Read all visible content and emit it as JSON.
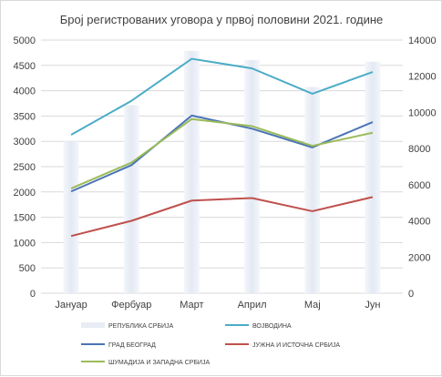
{
  "chart_data": {
    "type": "combo-bar-line",
    "title": "Број регистрованих уговора у првој половини 2021. године",
    "categories": [
      "Јануар",
      "Фербуар",
      "Март",
      "Април",
      "Мај",
      "Јун"
    ],
    "left_axis": {
      "min": 0,
      "max": 5000,
      "step": 500
    },
    "right_axis": {
      "min": 0,
      "max": 14000,
      "step": 2000
    },
    "grid": true,
    "legend_position": "bottom",
    "series": [
      {
        "name": "РЕПУБЛИКА СРБИЈА",
        "kind": "bar",
        "axis": "right",
        "color": "#e8edf5",
        "values": [
          8400,
          10400,
          13400,
          12900,
          11400,
          12800
        ]
      },
      {
        "name": "ВОЈВОДИНА",
        "kind": "line",
        "axis": "left",
        "color": "#4bacc6",
        "values": [
          3130,
          3800,
          4630,
          4440,
          3940,
          4370
        ]
      },
      {
        "name": "ГРАД БЕОГРАД",
        "kind": "line",
        "axis": "left",
        "color": "#4a74b4",
        "values": [
          2010,
          2530,
          3510,
          3250,
          2880,
          3380
        ]
      },
      {
        "name": "ЈУЖНА И ИСТОЧНА СРБИЈА",
        "kind": "line",
        "axis": "left",
        "color": "#c0504d",
        "values": [
          1130,
          1430,
          1830,
          1880,
          1620,
          1900
        ]
      },
      {
        "name": "ШУМАДИЈА И ЗАПАДНА СРБИЈА",
        "kind": "line",
        "axis": "left",
        "color": "#9bbb59",
        "values": [
          2070,
          2580,
          3440,
          3300,
          2910,
          3170
        ]
      }
    ]
  }
}
